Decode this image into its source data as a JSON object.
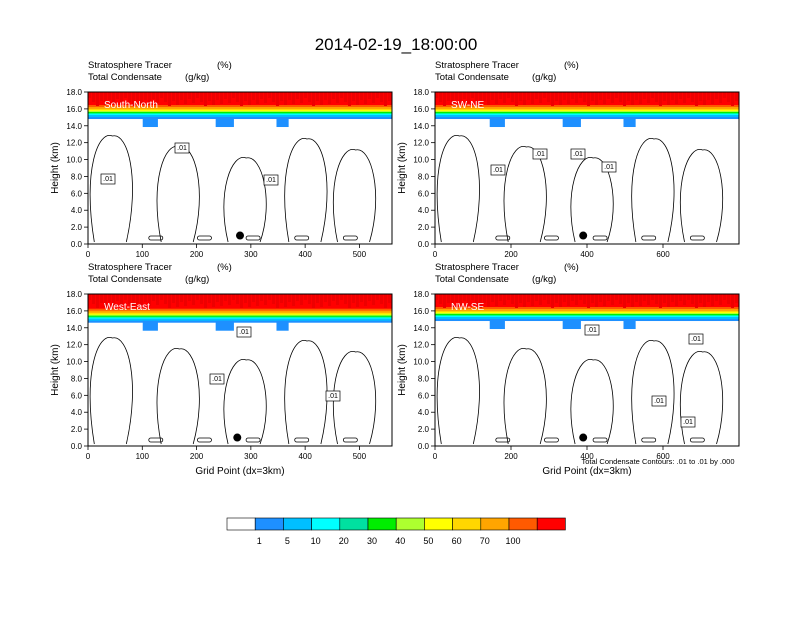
{
  "title": "2014-02-19_18:00:00",
  "panel_header": {
    "line1_label": "Stratosphere Tracer",
    "line1_unit": "(%)",
    "line2_label": "Total Condensate",
    "line2_unit": "(g/kg)"
  },
  "contour_note": "Total Condensate Contours: .01 to .01 by .000",
  "xlabel": "Grid Point (dx=3km)",
  "ylabel": "Height (km)",
  "chart_data": [
    {
      "type": "heatmap",
      "panel": "South-North",
      "ylim": [
        0,
        18
      ],
      "xlim": [
        0,
        560
      ],
      "yticks": [
        "0.0",
        "2.0",
        "4.0",
        "6.0",
        "8.0",
        "10.0",
        "12.0",
        "14.0",
        "16.0",
        "18.0"
      ],
      "xticks": [
        0,
        100,
        200,
        300,
        400,
        500
      ],
      "contour_labels": [
        ".01",
        ".01",
        ".01"
      ],
      "marker": {
        "x": 280,
        "y": 1.0
      },
      "tracer_base_km": 14.8
    },
    {
      "type": "heatmap",
      "panel": "SW-NE",
      "ylim": [
        0,
        18
      ],
      "xlim": [
        0,
        800
      ],
      "yticks": [
        "0.0",
        "2.0",
        "4.0",
        "6.0",
        "8.0",
        "10.0",
        "12.0",
        "14.0",
        "16.0",
        "18.0"
      ],
      "xticks": [
        0,
        200,
        400,
        600
      ],
      "contour_labels": [
        ".01",
        ".01",
        ".01",
        ".01"
      ],
      "marker": {
        "x": 390,
        "y": 1.0
      },
      "tracer_base_km": 14.8
    },
    {
      "type": "heatmap",
      "panel": "West-East",
      "ylim": [
        0,
        18
      ],
      "xlim": [
        0,
        560
      ],
      "yticks": [
        "0.0",
        "2.0",
        "4.0",
        "6.0",
        "8.0",
        "10.0",
        "12.0",
        "14.0",
        "16.0",
        "18.0"
      ],
      "xticks": [
        0,
        100,
        200,
        300,
        400,
        500
      ],
      "contour_labels": [
        ".01",
        ".01",
        ".01"
      ],
      "marker": {
        "x": 275,
        "y": 1.0
      },
      "tracer_base_km": 14.6
    },
    {
      "type": "heatmap",
      "panel": "NW-SE",
      "ylim": [
        0,
        18
      ],
      "xlim": [
        0,
        800
      ],
      "yticks": [
        "0.0",
        "2.0",
        "4.0",
        "6.0",
        "8.0",
        "10.0",
        "12.0",
        "14.0",
        "16.0",
        "18.0"
      ],
      "xticks": [
        0,
        200,
        400,
        600
      ],
      "contour_labels": [
        ".01",
        ".01",
        ".01",
        ".01"
      ],
      "marker": {
        "x": 390,
        "y": 1.0
      },
      "tracer_base_km": 14.8
    }
  ],
  "colorbar": {
    "levels": [
      "1",
      "5",
      "10",
      "20",
      "30",
      "40",
      "50",
      "60",
      "70",
      "100"
    ],
    "colors": [
      "#ffffff",
      "#1e90ff",
      "#00bfff",
      "#00ffff",
      "#00fa9a",
      "#00ee00",
      "#adff2f",
      "#ffff00",
      "#ffd700",
      "#ffa500",
      "#ff5a00",
      "#ff0000"
    ]
  }
}
